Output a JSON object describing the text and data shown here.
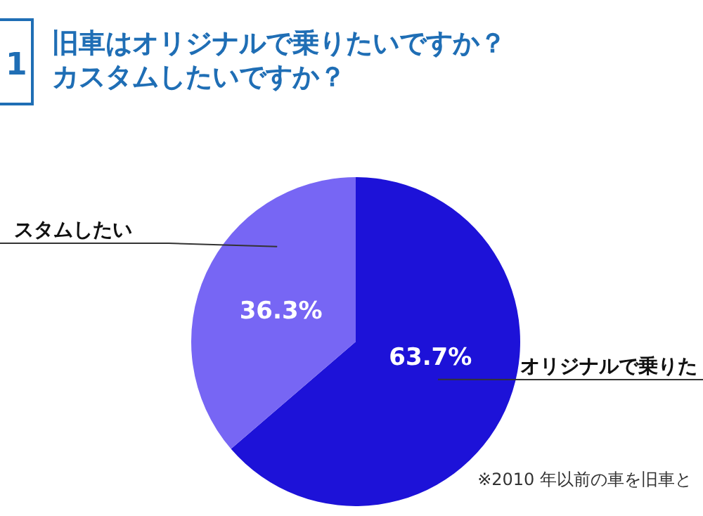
{
  "chart_data": {
    "type": "pie",
    "title": "旧車はオリジナルで乗りたいですか？カスタムしたいですか？",
    "categories": [
      "オリジナルで乗りた",
      "スタムしたい"
    ],
    "values": [
      63.7,
      36.3
    ],
    "colors": [
      "#1d12d8",
      "#7766f4"
    ],
    "value_labels": [
      "63.7%",
      "36.3%"
    ],
    "annotations": [
      "1",
      "※2010 年以前の車を旧車と"
    ]
  }
}
